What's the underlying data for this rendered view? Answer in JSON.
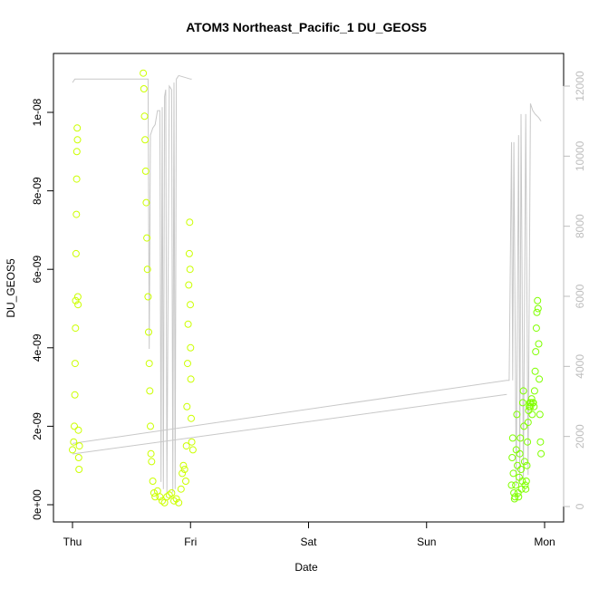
{
  "chart_data": {
    "type": "scatter",
    "title": "ATOM3 Northeast_Pacific_1 DU_GEOS5",
    "xlabel": "Date",
    "ylabel": "DU_GEOS5",
    "x_ticks": [
      "Thu",
      "Fri",
      "Sat",
      "Sun",
      "Mon"
    ],
    "x_domain_days": [
      0,
      4
    ],
    "ylim": [
      0,
      1.1e-08
    ],
    "y_ticks": [
      "0e+00",
      "2e-09",
      "4e-09",
      "6e-09",
      "8e-09",
      "1e-08"
    ],
    "y_tick_values": [
      0,
      2e-09,
      4e-09,
      6e-09,
      8e-09,
      1e-08
    ],
    "y2lim": [
      0,
      13000
    ],
    "y2_ticks": [
      "0",
      "2000",
      "4000",
      "6000",
      "8000",
      "10000",
      "12000"
    ],
    "y2_tick_values": [
      0,
      2000,
      4000,
      6000,
      8000,
      10000,
      12000
    ],
    "colors": {
      "points_early": "#ccff00",
      "points_late": "#80ff00",
      "altitude_line": "#c8c8c8",
      "right_axis": "#bdbdbd"
    },
    "series": [
      {
        "type": "scatter",
        "axis": "left",
        "color": "#ccff00",
        "points": [
          [
            0.0,
            1.4e-09
          ],
          [
            0.01,
            1.6e-09
          ],
          [
            0.015,
            2e-09
          ],
          [
            0.02,
            2.8e-09
          ],
          [
            0.022,
            3.6e-09
          ],
          [
            0.025,
            4.5e-09
          ],
          [
            0.027,
            5.2e-09
          ],
          [
            0.03,
            6.4e-09
          ],
          [
            0.033,
            7.4e-09
          ],
          [
            0.035,
            8.3e-09
          ],
          [
            0.037,
            9e-09
          ],
          [
            0.04,
            9.6e-09
          ],
          [
            0.042,
            9.3e-09
          ],
          [
            0.045,
            5.3e-09
          ],
          [
            0.047,
            5.1e-09
          ],
          [
            0.05,
            1.9e-09
          ],
          [
            0.052,
            1.2e-09
          ],
          [
            0.055,
            9e-10
          ],
          [
            0.058,
            1.5e-09
          ],
          [
            0.6,
            1.1e-08
          ],
          [
            0.605,
            1.06e-08
          ],
          [
            0.61,
            9.9e-09
          ],
          [
            0.615,
            9.3e-09
          ],
          [
            0.62,
            8.5e-09
          ],
          [
            0.625,
            7.7e-09
          ],
          [
            0.63,
            6.8e-09
          ],
          [
            0.635,
            6e-09
          ],
          [
            0.64,
            5.3e-09
          ],
          [
            0.645,
            4.4e-09
          ],
          [
            0.65,
            3.6e-09
          ],
          [
            0.655,
            2.9e-09
          ],
          [
            0.66,
            2e-09
          ],
          [
            0.665,
            1.3e-09
          ],
          [
            0.67,
            1.1e-09
          ],
          [
            0.68,
            6e-10
          ],
          [
            0.69,
            3e-10
          ],
          [
            0.7,
            2e-10
          ],
          [
            0.72,
            3.5e-10
          ],
          [
            0.74,
            2e-10
          ],
          [
            0.76,
            1e-10
          ],
          [
            0.78,
            5e-11
          ],
          [
            0.8,
            2e-10
          ],
          [
            0.82,
            2.5e-10
          ],
          [
            0.84,
            3e-10
          ],
          [
            0.86,
            1e-10
          ],
          [
            0.88,
            1.5e-10
          ],
          [
            0.9,
            5e-11
          ],
          [
            0.92,
            4e-10
          ],
          [
            0.93,
            8e-10
          ],
          [
            0.94,
            1e-09
          ],
          [
            0.95,
            9e-10
          ],
          [
            0.96,
            6e-10
          ],
          [
            0.965,
            1.5e-09
          ],
          [
            0.97,
            2.5e-09
          ],
          [
            0.975,
            3.6e-09
          ],
          [
            0.98,
            4.6e-09
          ],
          [
            0.985,
            5.6e-09
          ],
          [
            0.99,
            6.4e-09
          ],
          [
            0.993,
            7.2e-09
          ],
          [
            0.996,
            6e-09
          ],
          [
            0.998,
            5.1e-09
          ],
          [
            1.0,
            4e-09
          ],
          [
            1.003,
            3.2e-09
          ],
          [
            1.006,
            2.2e-09
          ],
          [
            1.01,
            1.6e-09
          ],
          [
            1.02,
            1.4e-09
          ]
        ]
      },
      {
        "type": "scatter",
        "axis": "left",
        "color": "#80ff00",
        "points": [
          [
            3.72,
            5e-10
          ],
          [
            3.725,
            1.2e-09
          ],
          [
            3.73,
            1.7e-09
          ],
          [
            3.735,
            8e-10
          ],
          [
            3.74,
            3e-10
          ],
          [
            3.745,
            1.5e-10
          ],
          [
            3.75,
            2e-10
          ],
          [
            3.755,
            5e-10
          ],
          [
            3.76,
            1.4e-09
          ],
          [
            3.765,
            2.3e-09
          ],
          [
            3.77,
            1e-09
          ],
          [
            3.775,
            3e-10
          ],
          [
            3.78,
            2e-10
          ],
          [
            3.785,
            7e-10
          ],
          [
            3.79,
            1.3e-09
          ],
          [
            3.795,
            1.7e-09
          ],
          [
            3.8,
            9e-10
          ],
          [
            3.805,
            4e-10
          ],
          [
            3.81,
            6e-10
          ],
          [
            3.815,
            2.6e-09
          ],
          [
            3.82,
            2.9e-09
          ],
          [
            3.825,
            2e-09
          ],
          [
            3.83,
            1.1e-09
          ],
          [
            3.835,
            5e-10
          ],
          [
            3.84,
            4e-10
          ],
          [
            3.845,
            6e-10
          ],
          [
            3.85,
            1e-09
          ],
          [
            3.855,
            1.6e-09
          ],
          [
            3.86,
            2.1e-09
          ],
          [
            3.865,
            2.4e-09
          ],
          [
            3.87,
            2.5e-09
          ],
          [
            3.875,
            2.6e-09
          ],
          [
            3.88,
            2.5e-09
          ],
          [
            3.885,
            2.6e-09
          ],
          [
            3.89,
            2.7e-09
          ],
          [
            3.895,
            2.3e-09
          ],
          [
            3.9,
            2.6e-09
          ],
          [
            3.905,
            2.6e-09
          ],
          [
            3.91,
            2.5e-09
          ],
          [
            3.915,
            2.9e-09
          ],
          [
            3.92,
            3.4e-09
          ],
          [
            3.925,
            3.9e-09
          ],
          [
            3.93,
            4.5e-09
          ],
          [
            3.935,
            4.9e-09
          ],
          [
            3.94,
            5.2e-09
          ],
          [
            3.945,
            5e-09
          ],
          [
            3.95,
            4.1e-09
          ],
          [
            3.955,
            3.2e-09
          ],
          [
            3.96,
            2.3e-09
          ],
          [
            3.965,
            1.6e-09
          ],
          [
            3.97,
            1.3e-09
          ]
        ]
      },
      {
        "type": "line",
        "axis": "right",
        "color": "#c8c8c8",
        "points": [
          [
            0.0,
            12100
          ],
          [
            0.02,
            12200
          ],
          [
            0.6,
            12200
          ],
          [
            0.64,
            12200
          ],
          [
            0.65,
            4500
          ],
          [
            0.66,
            10600
          ],
          [
            0.68,
            10800
          ],
          [
            0.7,
            10900
          ],
          [
            0.72,
            11300
          ],
          [
            0.74,
            11300
          ],
          [
            0.75,
            700
          ],
          [
            0.76,
            11400
          ],
          [
            0.77,
            500
          ],
          [
            0.78,
            11700
          ],
          [
            0.79,
            11900
          ],
          [
            0.8,
            400
          ],
          [
            0.82,
            12000
          ],
          [
            0.84,
            11900
          ],
          [
            0.85,
            400
          ],
          [
            0.86,
            12100
          ],
          [
            0.87,
            500
          ],
          [
            0.88,
            12200
          ],
          [
            0.89,
            12250
          ],
          [
            0.9,
            12300
          ],
          [
            0.95,
            12250
          ],
          [
            1.0,
            12200
          ],
          [
            1.01,
            12200
          ],
          [
            0.0,
            1800
          ],
          [
            3.68,
            3600
          ],
          [
            3.7,
            3600
          ],
          [
            3.72,
            10400
          ],
          [
            3.73,
            3600
          ],
          [
            3.74,
            10400
          ],
          [
            3.76,
            600
          ],
          [
            3.78,
            10600
          ],
          [
            3.79,
            700
          ],
          [
            3.8,
            11200
          ],
          [
            3.82,
            800
          ],
          [
            3.84,
            11200
          ],
          [
            3.86,
            900
          ],
          [
            3.88,
            11500
          ],
          [
            3.9,
            11300
          ],
          [
            3.92,
            11200
          ],
          [
            3.95,
            11100
          ],
          [
            3.97,
            11000
          ]
        ]
      }
    ]
  }
}
